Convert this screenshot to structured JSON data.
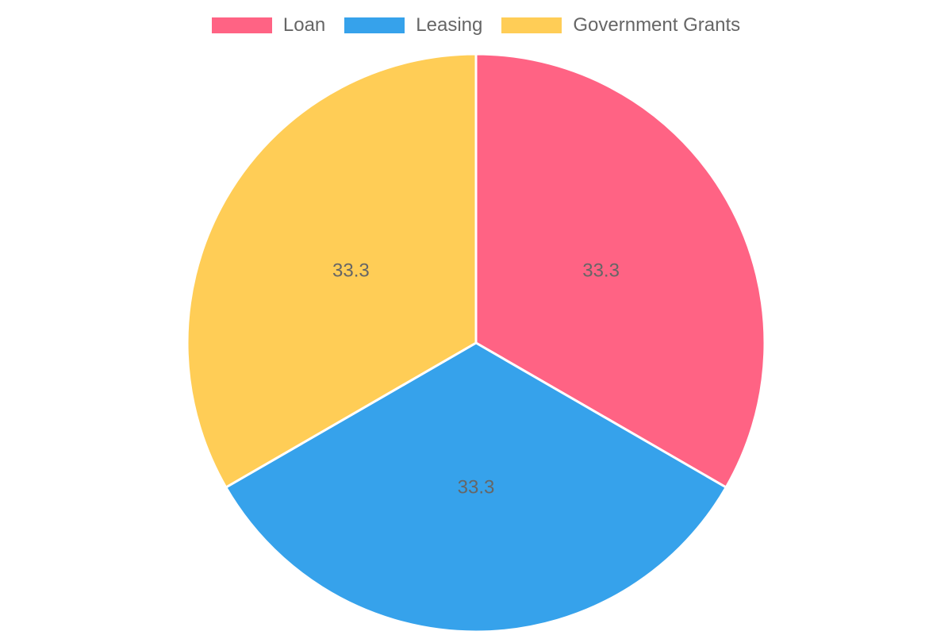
{
  "chart_data": {
    "type": "pie",
    "categories": [
      "Loan",
      "Leasing",
      "Government Grants"
    ],
    "values": [
      33.3,
      33.3,
      33.3
    ],
    "data_labels": [
      "33.3",
      "33.3",
      "33.3"
    ],
    "colors": [
      "#ff6384",
      "#36a2eb",
      "#ffcd56"
    ],
    "legend_position": "top",
    "title": ""
  }
}
